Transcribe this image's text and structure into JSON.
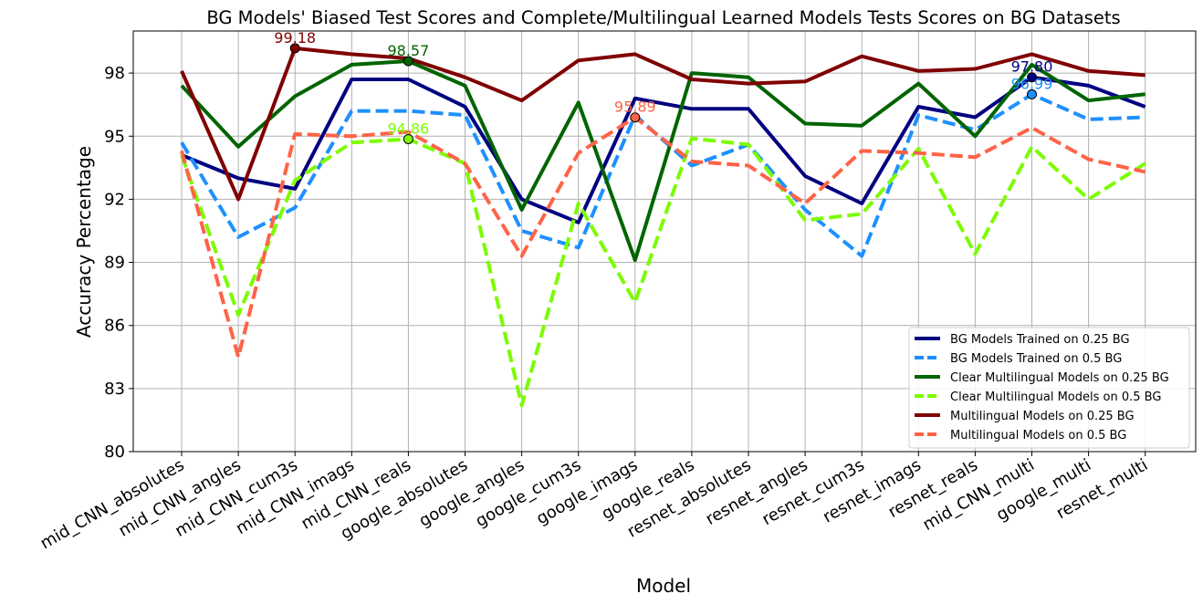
{
  "chart_data": {
    "type": "line",
    "title": "BG Models' Biased Test Scores and Complete/Multilingual Learned Models Tests Scores on BG Datasets",
    "xlabel": "Model",
    "ylabel": "Accuracy Percentage",
    "categories": [
      "mid_CNN_absolutes",
      "mid_CNN_angles",
      "mid_CNN_cum3s",
      "mid_CNN_imags",
      "mid_CNN_reals",
      "google_absolutes",
      "google_angles",
      "google_cum3s",
      "google_imags",
      "google_reals",
      "resnet_absolutes",
      "resnet_angles",
      "resnet_cum3s",
      "resnet_imags",
      "resnet_reals",
      "mid_CNN_multi",
      "google_multi",
      "resnet_multi"
    ],
    "ylim": [
      80,
      100
    ],
    "yticks": [
      "80",
      "83",
      "86",
      "89",
      "92",
      "95",
      "98"
    ],
    "ytick_values": [
      80,
      83,
      86,
      89,
      92,
      95,
      98
    ],
    "grid": true,
    "legend_position": "lower-right",
    "series": [
      {
        "name": "BG Models Trained on 0.25 BG",
        "color": "#000080",
        "dash": "solid",
        "values": [
          94.1,
          93.0,
          92.5,
          97.7,
          97.7,
          96.4,
          92.0,
          90.9,
          96.8,
          96.3,
          96.3,
          93.1,
          91.8,
          96.4,
          95.9,
          97.8,
          97.4,
          96.4
        ]
      },
      {
        "name": "BG Models Trained on 0.5 BG",
        "color": "#1e90ff",
        "dash": "dashed",
        "values": [
          94.7,
          90.2,
          91.6,
          96.2,
          96.2,
          96.0,
          90.5,
          89.7,
          96.0,
          93.6,
          94.6,
          91.5,
          89.3,
          96.0,
          95.3,
          96.99,
          95.8,
          95.9
        ]
      },
      {
        "name": "Clear Multilingual Models on 0.25 BG",
        "color": "#006400",
        "dash": "solid",
        "values": [
          97.4,
          94.5,
          96.9,
          98.4,
          98.57,
          97.4,
          91.5,
          96.6,
          89.1,
          98.0,
          97.8,
          95.6,
          95.5,
          97.5,
          95.0,
          98.4,
          96.7,
          97.0
        ]
      },
      {
        "name": "Clear Multilingual Models on 0.5 BG",
        "color": "#7cfc00",
        "dash": "dashed",
        "values": [
          94.1,
          86.5,
          92.9,
          94.7,
          94.86,
          93.7,
          82.2,
          91.8,
          87.1,
          94.9,
          94.6,
          91.0,
          91.3,
          94.4,
          89.4,
          94.5,
          92.0,
          93.7
        ]
      },
      {
        "name": "Multilingual Models on 0.25 BG",
        "color": "#800000",
        "dash": "solid",
        "values": [
          98.1,
          92.0,
          99.18,
          98.9,
          98.7,
          97.8,
          96.7,
          98.6,
          98.9,
          97.7,
          97.5,
          97.6,
          98.8,
          98.1,
          98.2,
          98.9,
          98.1,
          97.9
        ]
      },
      {
        "name": "Multilingual Models on 0.5 BG",
        "color": "#ff6347",
        "dash": "dashed",
        "values": [
          94.3,
          84.5,
          95.1,
          95.0,
          95.2,
          93.7,
          89.3,
          94.2,
          95.89,
          93.8,
          93.6,
          91.8,
          94.3,
          94.2,
          94.0,
          95.4,
          93.9,
          93.3
        ]
      }
    ],
    "annotations": [
      {
        "text": "99.18",
        "series": 4,
        "index": 2,
        "color": "#800000"
      },
      {
        "text": "98.57",
        "series": 2,
        "index": 4,
        "color": "#006400"
      },
      {
        "text": "94.86",
        "series": 3,
        "index": 4,
        "color": "#7cfc00"
      },
      {
        "text": "95.89",
        "series": 5,
        "index": 8,
        "color": "#ff6347"
      },
      {
        "text": "97.80",
        "series": 0,
        "index": 15,
        "color": "#000080"
      },
      {
        "text": "96.99",
        "series": 1,
        "index": 15,
        "color": "#1e90ff"
      }
    ]
  }
}
